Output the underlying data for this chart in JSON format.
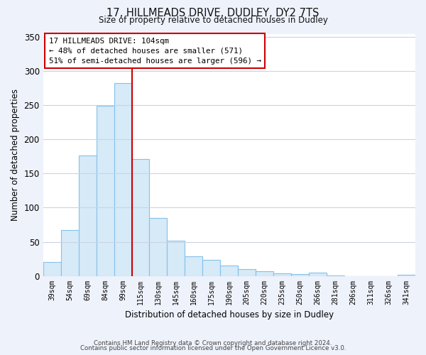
{
  "title": "17, HILLMEADS DRIVE, DUDLEY, DY2 7TS",
  "subtitle": "Size of property relative to detached houses in Dudley",
  "xlabel": "Distribution of detached houses by size in Dudley",
  "ylabel": "Number of detached properties",
  "bar_labels": [
    "39sqm",
    "54sqm",
    "69sqm",
    "84sqm",
    "99sqm",
    "115sqm",
    "130sqm",
    "145sqm",
    "160sqm",
    "175sqm",
    "190sqm",
    "205sqm",
    "220sqm",
    "235sqm",
    "250sqm",
    "266sqm",
    "281sqm",
    "296sqm",
    "311sqm",
    "326sqm",
    "341sqm"
  ],
  "bar_values": [
    20,
    67,
    176,
    249,
    283,
    171,
    85,
    52,
    29,
    23,
    15,
    10,
    7,
    4,
    3,
    5,
    1,
    0,
    0,
    0,
    2
  ],
  "bar_color": "#d6eaf8",
  "bar_edge_color": "#85c1e9",
  "vline_x": 4.5,
  "vline_color": "#cc0000",
  "annotation_title": "17 HILLMEADS DRIVE: 104sqm",
  "annotation_line1": "← 48% of detached houses are smaller (571)",
  "annotation_line2": "51% of semi-detached houses are larger (596) →",
  "annotation_box_color": "#ffffff",
  "annotation_box_edge_color": "#cc0000",
  "ylim": [
    0,
    355
  ],
  "yticks": [
    0,
    50,
    100,
    150,
    200,
    250,
    300,
    350
  ],
  "footer_line1": "Contains HM Land Registry data © Crown copyright and database right 2024.",
  "footer_line2": "Contains public sector information licensed under the Open Government Licence v3.0.",
  "bg_color": "#eef2fb",
  "plot_bg_color": "#ffffff",
  "grid_color": "#c8d4e8"
}
